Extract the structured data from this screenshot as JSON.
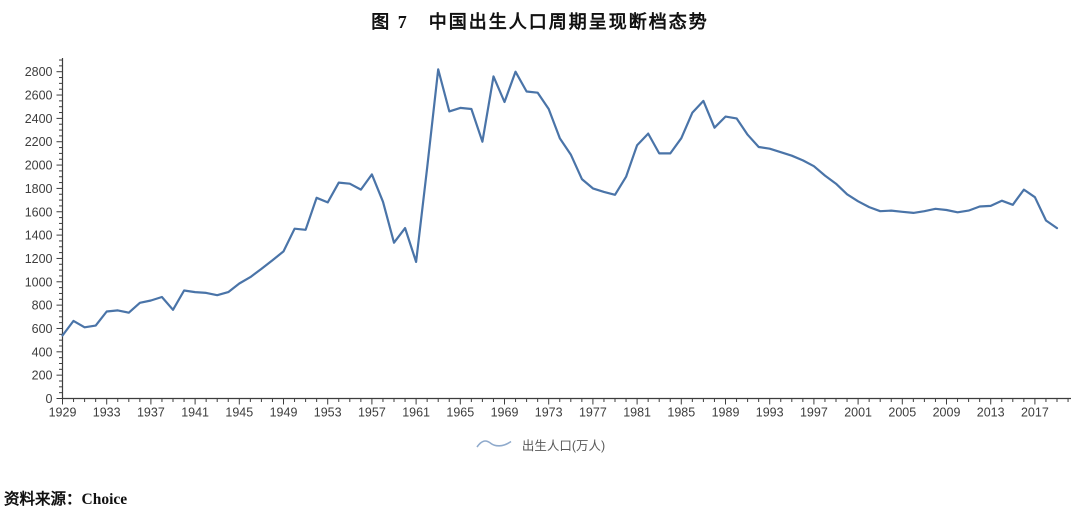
{
  "figure": {
    "title": "图 7　中国出生人口周期呈现断档态势",
    "source": "资料来源：Choice"
  },
  "legend": {
    "label": "出生人口(万人)"
  },
  "chart_data": {
    "type": "line",
    "title": "图 7 中国出生人口周期呈现断档态势",
    "series_name": "出生人口(万人)",
    "x": [
      1929,
      1930,
      1931,
      1932,
      1933,
      1934,
      1935,
      1936,
      1937,
      1938,
      1939,
      1940,
      1941,
      1942,
      1943,
      1944,
      1945,
      1946,
      1947,
      1948,
      1949,
      1950,
      1951,
      1952,
      1953,
      1954,
      1955,
      1956,
      1957,
      1958,
      1959,
      1960,
      1961,
      1962,
      1963,
      1964,
      1965,
      1966,
      1967,
      1968,
      1969,
      1970,
      1971,
      1972,
      1973,
      1974,
      1975,
      1976,
      1977,
      1978,
      1979,
      1980,
      1981,
      1982,
      1983,
      1984,
      1985,
      1986,
      1987,
      1988,
      1989,
      1990,
      1991,
      1992,
      1993,
      1994,
      1995,
      1996,
      1997,
      1998,
      1999,
      2000,
      2001,
      2002,
      2003,
      2004,
      2005,
      2006,
      2007,
      2008,
      2009,
      2010,
      2011,
      2012,
      2013,
      2014,
      2015,
      2016,
      2017,
      2018,
      2019
    ],
    "values": [
      540,
      665,
      610,
      625,
      745,
      755,
      735,
      820,
      840,
      870,
      760,
      925,
      912,
      905,
      885,
      912,
      985,
      1040,
      1110,
      1185,
      1260,
      1455,
      1445,
      1720,
      1680,
      1850,
      1840,
      1790,
      1920,
      1685,
      1335,
      1460,
      1170,
      1980,
      2820,
      2460,
      2490,
      2480,
      2200,
      2760,
      2540,
      2800,
      2630,
      2620,
      2480,
      2230,
      2090,
      1880,
      1800,
      1770,
      1745,
      1900,
      2170,
      2270,
      2100,
      2100,
      2230,
      2450,
      2550,
      2320,
      2415,
      2400,
      2260,
      2155,
      2140,
      2110,
      2080,
      2040,
      1990,
      1910,
      1840,
      1750,
      1690,
      1640,
      1605,
      1610,
      1600,
      1590,
      1605,
      1625,
      1615,
      1595,
      1610,
      1645,
      1650,
      1695,
      1660,
      1790,
      1725,
      1525,
      1460
    ],
    "xlabel": "",
    "ylabel": "",
    "ylim": [
      0,
      2900
    ],
    "y_ticks": [
      0,
      200,
      400,
      600,
      800,
      1000,
      1200,
      1400,
      1600,
      1800,
      2000,
      2200,
      2400,
      2600,
      2800
    ],
    "y_minor_step": 50,
    "x_tick_labels": [
      1929,
      1933,
      1937,
      1941,
      1945,
      1949,
      1953,
      1957,
      1961,
      1965,
      1969,
      1973,
      1977,
      1981,
      1985,
      1989,
      1993,
      1997,
      2001,
      2005,
      2009,
      2013,
      2017
    ],
    "x_minor_step": 1,
    "x_axis_end_year": 2020,
    "grid": false,
    "legend_position": "bottom",
    "line_color": "#4A74A8",
    "legend_icon_color": "#8FAACC",
    "axis_color": "#3d3d3d",
    "label_color": "#3d3d3d"
  }
}
